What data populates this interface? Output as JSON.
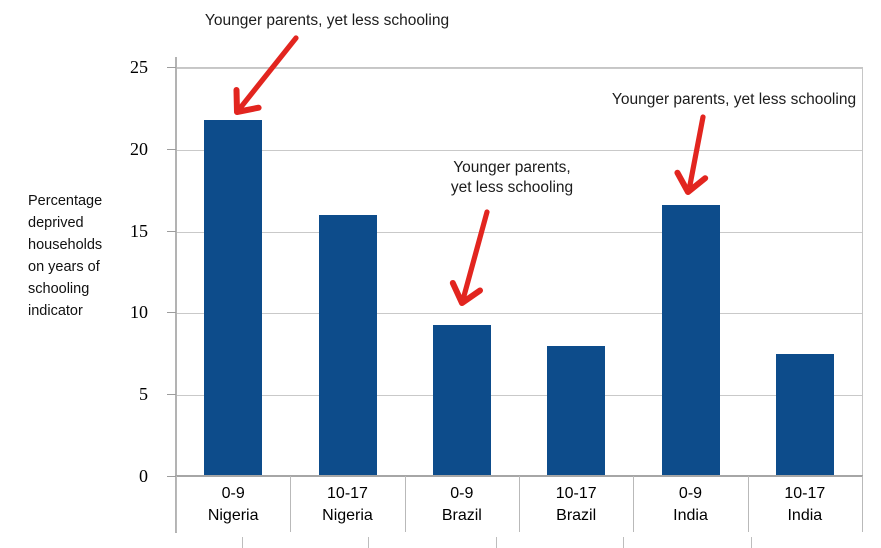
{
  "y_axis": {
    "title_lines": "Percentage\ndeprived\nhouseholds\non years of\nschooling\nindicator"
  },
  "annotations": [
    {
      "text": "Younger parents, yet less schooling",
      "target_bar": "0-9 Nigeria"
    },
    {
      "text": "Younger parents,\nyet less schooling",
      "target_bar": "0-9 Brazil"
    },
    {
      "text": "Younger parents, yet less schooling",
      "target_bar": "0-9 India"
    }
  ],
  "colors": {
    "bar": "#0d4c8b",
    "arrow": "#e2251f",
    "gridline": "#c9c9c9",
    "axis": "#b3b3b3",
    "text": "#000000"
  },
  "chart_data": {
    "type": "bar",
    "categories": [
      "0-9 Nigeria",
      "10-17 Nigeria",
      "0-9 Brazil",
      "10-17 Brazil",
      "0-9 India",
      "10-17 India"
    ],
    "category_labels": [
      "0-9\nNigeria",
      "10-17\nNigeria",
      "0-9\nBrazil",
      "10-17\nBrazil",
      "0-9\nIndia",
      "10-17\nIndia"
    ],
    "values": [
      21.8,
      16,
      9.3,
      8,
      16.6,
      7.5
    ],
    "title": "",
    "xlabel": "",
    "ylabel": "Percentage deprived households on years of schooling indicator",
    "ylim": [
      0,
      25
    ],
    "yticks": [
      0,
      5,
      10,
      15,
      20,
      25
    ],
    "grid": true,
    "legend": false,
    "annotation_text_repeated": "Younger parents, yet less schooling"
  }
}
